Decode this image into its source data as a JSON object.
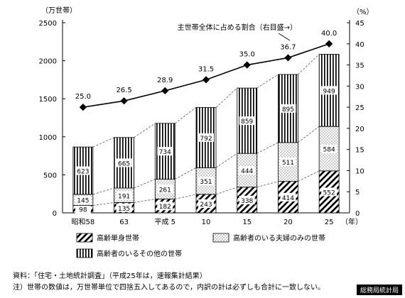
{
  "chart_data": {
    "type": "bar",
    "stacked": true,
    "categories": [
      "昭和58",
      "63",
      "平成 5",
      "10",
      "15",
      "20",
      "25"
    ],
    "x_unit": "（年）",
    "y_unit": "（万世帯）",
    "y2_unit": "（%）",
    "ylim": [
      0,
      2500
    ],
    "y_ticks": [
      0,
      500,
      1000,
      1500,
      2000,
      2500
    ],
    "y2lim": [
      0,
      45
    ],
    "y2_ticks": [
      0,
      5,
      10,
      15,
      20,
      25,
      30,
      35,
      40,
      45
    ],
    "series": [
      {
        "name": "高齢単身世帯",
        "pattern": "diagonal",
        "values": [
          98,
          135,
          182,
          243,
          338,
          414,
          552
        ]
      },
      {
        "name": "高齢者のいる夫婦のみの世帯",
        "pattern": "dotted",
        "values": [
          145,
          191,
          261,
          351,
          444,
          511,
          584
        ]
      },
      {
        "name": "高齢者のいるその他の世帯",
        "pattern": "vertical",
        "values": [
          623,
          665,
          734,
          792,
          859,
          895,
          949
        ]
      }
    ],
    "line_series": {
      "name": "主世帯全体に占める割合（右目盛→）",
      "axis": "right",
      "values": [
        25.0,
        26.5,
        28.9,
        31.5,
        35.0,
        36.7,
        40.0
      ],
      "labels": [
        "25.0",
        "26.5",
        "28.9",
        "31.5",
        "35.0",
        "36.7",
        "40.0"
      ]
    },
    "grid": false,
    "legend_position": "bottom"
  },
  "notes": {
    "source": "資料：「住宅・土地統計調査」（平成25年は，速報集計結果）",
    "note": "注）世帯の数値は，万世帯単位で四捨五入してあるので，内訳の計は必ずしも合計に一致しない。"
  },
  "branding": "総務局統計局"
}
